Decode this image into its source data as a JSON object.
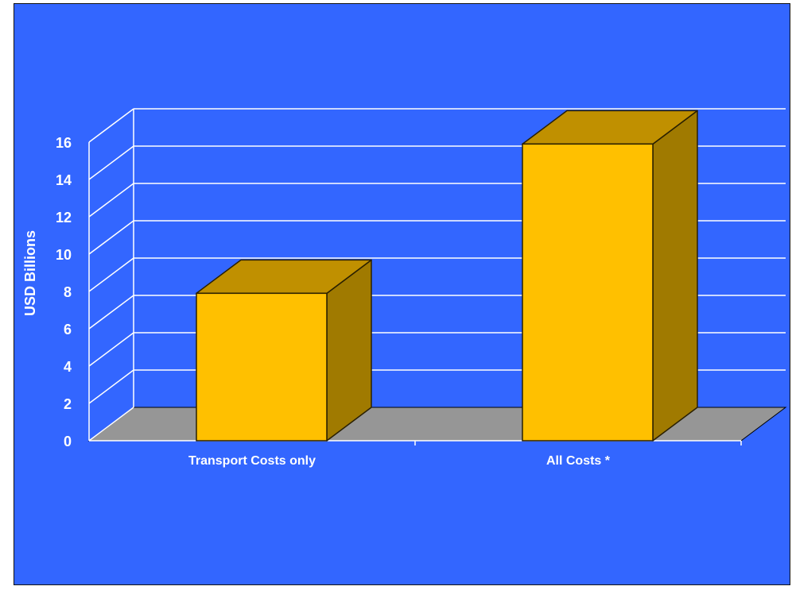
{
  "colors": {
    "background": "#3366ff",
    "floor": "#969696",
    "gridline": "#ffffff",
    "bar_front": "#ffc000",
    "bar_top": "#c09000",
    "bar_side": "#a07a00",
    "bar_outline": "#2a2000",
    "text": "#ffffff"
  },
  "chart_data": {
    "type": "bar",
    "style": "3d-column",
    "title": "",
    "xlabel": "",
    "ylabel": "USD Billions",
    "ylim": [
      0,
      16
    ],
    "yticks": [
      0,
      2,
      4,
      6,
      8,
      10,
      12,
      14,
      16
    ],
    "categories": [
      "Transport Costs only",
      "All Costs *"
    ],
    "values": [
      7.9,
      15.9
    ],
    "grid": true,
    "legend": "none"
  }
}
